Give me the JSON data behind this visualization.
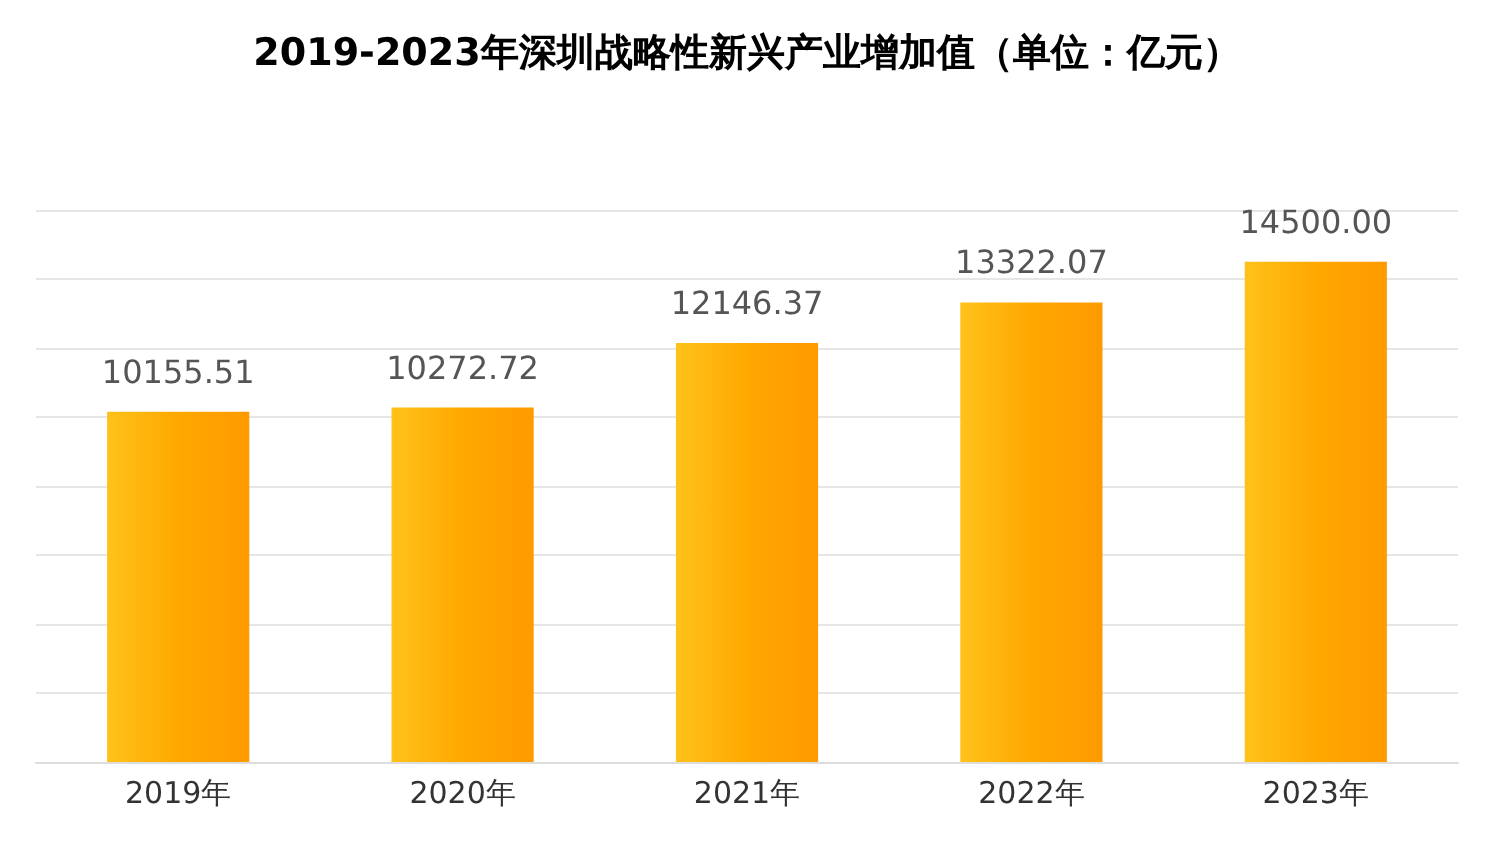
{
  "chart_data": {
    "type": "bar",
    "title": "2019-2023年深圳战略性新兴产业增加值（单位：亿元）",
    "categories": [
      "2019年",
      "2020年",
      "2021年",
      "2022年",
      "2023年"
    ],
    "values": [
      10155.51,
      10272.72,
      12146.37,
      13322.07,
      14500.0
    ],
    "value_labels": [
      "10155.51",
      "10272.72",
      "12146.37",
      "13322.07",
      "14500.00"
    ],
    "color": "#ffa800",
    "ylim": [
      0,
      16000
    ],
    "yticks": [
      {
        "value": 0,
        "label": null
      },
      {
        "value": 2000,
        "label": null
      },
      {
        "value": 4000,
        "label": null
      },
      {
        "value": 6000,
        "label": null
      },
      {
        "value": 8000,
        "label": null
      },
      {
        "value": 10000,
        "label": null
      },
      {
        "value": 12000,
        "label": null
      },
      {
        "value": 14000,
        "label": null
      },
      {
        "value": 16000,
        "label": null
      }
    ],
    "tick_labels": "x",
    "grid": "y"
  }
}
